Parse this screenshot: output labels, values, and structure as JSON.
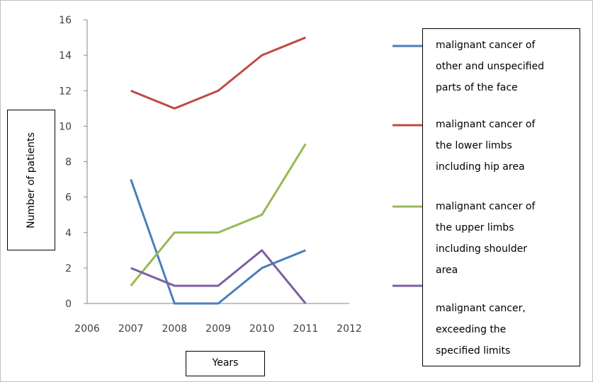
{
  "chart_data": {
    "type": "line",
    "title": "",
    "xlabel": "Years",
    "ylabel": "Number of patients",
    "x_ticks": [
      "2006",
      "2007",
      "2008",
      "2009",
      "2010",
      "2011",
      "2012"
    ],
    "y_ticks": [
      "0",
      "2",
      "4",
      "6",
      "8",
      "10",
      "12",
      "14",
      "16"
    ],
    "xlim": [
      2006,
      2012
    ],
    "ylim": [
      0,
      16
    ],
    "grid": false,
    "legend_position": "right",
    "categories": [
      2007,
      2008,
      2009,
      2010,
      2011
    ],
    "series": [
      {
        "name": "malignant cancer of other and unspecified parts of the face",
        "color": "#4a7ebb",
        "values": [
          7,
          0,
          0,
          2,
          3
        ]
      },
      {
        "name": "malignant cancer of the lower limbs including hip area",
        "color": "#be4b48",
        "values": [
          12,
          11,
          12,
          14,
          15
        ]
      },
      {
        "name": "malignant cancer of the upper limbs including shoulder area",
        "color": "#98b954",
        "values": [
          1,
          4,
          4,
          5,
          9
        ]
      },
      {
        "name": "malignant cancer, exceeding the specified limits",
        "color": "#7d60a0",
        "values": [
          2,
          1,
          1,
          3,
          0
        ]
      }
    ]
  },
  "legend": {
    "items": [
      {
        "text": "malignant cancer of\nother and unspecified\nparts of the face"
      },
      {
        "text": "malignant cancer of\nthe lower limbs\nincluding hip area"
      },
      {
        "text": "malignant cancer of\nthe upper limbs\nincluding shoulder\narea"
      },
      {
        "text": "malignant cancer,\nexceeding the\nspecified limits"
      }
    ]
  }
}
